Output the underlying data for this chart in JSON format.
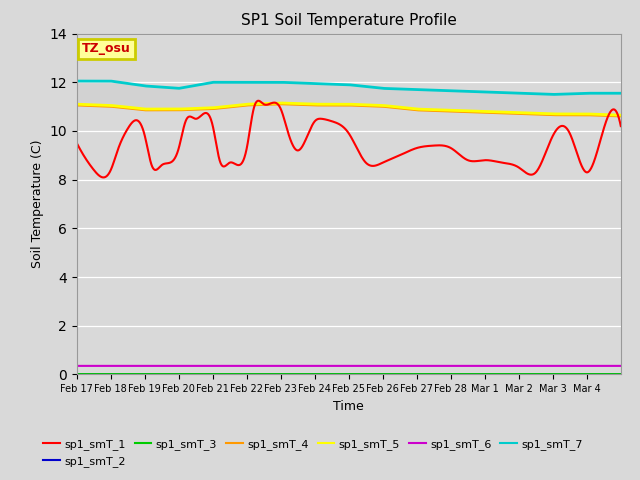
{
  "title": "SP1 Soil Temperature Profile",
  "xlabel": "Time",
  "ylabel": "Soil Temperature (C)",
  "ylim": [
    0,
    14
  ],
  "yticks": [
    0,
    2,
    4,
    6,
    8,
    10,
    12,
    14
  ],
  "background_color": "#d9d9d9",
  "plot_background": "#d9d9d9",
  "tz_label": "TZ_osu",
  "legend_entries": [
    "sp1_smT_1",
    "sp1_smT_2",
    "sp1_smT_3",
    "sp1_smT_4",
    "sp1_smT_5",
    "sp1_smT_6",
    "sp1_smT_7"
  ],
  "line_colors": {
    "sp1_smT_1": "#ff0000",
    "sp1_smT_2": "#0000cc",
    "sp1_smT_3": "#00cc00",
    "sp1_smT_4": "#ff9900",
    "sp1_smT_5": "#ffff00",
    "sp1_smT_6": "#cc00cc",
    "sp1_smT_7": "#00cccc"
  },
  "x_tick_labels": [
    "Feb 17",
    "Feb 18",
    "Feb 19",
    "Feb 20",
    "Feb 21",
    "Feb 22",
    "Feb 23",
    "Feb 24",
    "Feb 25",
    "Feb 26",
    "Feb 27",
    "Feb 28",
    "Mar 1",
    "Mar 2",
    "Mar 3",
    "Mar 4"
  ],
  "red_data": {
    "t": [
      0,
      0.2,
      0.5,
      1.0,
      1.2,
      1.5,
      2.0,
      2.2,
      2.5,
      3.0,
      3.2,
      3.5,
      4.0,
      4.2,
      4.5,
      5.0,
      5.2,
      5.5,
      6.0,
      6.2,
      6.5,
      7.0,
      7.2,
      7.5,
      8.0,
      8.5,
      9.0,
      9.5,
      10.0,
      10.5,
      11.0,
      11.5,
      12.0,
      12.5,
      13.0,
      13.5,
      14.0,
      14.5,
      15.0,
      15.5,
      16.0
    ],
    "v": [
      9.5,
      9.0,
      8.4,
      8.4,
      9.2,
      10.1,
      9.8,
      8.6,
      8.6,
      9.3,
      10.4,
      10.5,
      10.2,
      8.8,
      8.7,
      9.3,
      10.9,
      11.1,
      10.9,
      10.0,
      9.2,
      10.4,
      10.5,
      10.4,
      9.9,
      8.7,
      8.7,
      9.0,
      9.3,
      9.4,
      9.3,
      8.8,
      8.8,
      8.7,
      8.5,
      8.3,
      9.8,
      9.9,
      8.3,
      10.1,
      10.2
    ]
  },
  "yellow_data": {
    "t": [
      0,
      1,
      2,
      3,
      4,
      5,
      6,
      7,
      8,
      9,
      10,
      11,
      12,
      13,
      14,
      15,
      16
    ],
    "v": [
      11.1,
      11.05,
      10.9,
      10.9,
      10.95,
      11.1,
      11.15,
      11.1,
      11.1,
      11.05,
      10.9,
      10.85,
      10.8,
      10.75,
      10.7,
      10.7,
      10.65
    ]
  },
  "cyan_data": {
    "t": [
      0,
      1,
      2,
      3,
      4,
      5,
      6,
      7,
      8,
      9,
      10,
      11,
      12,
      13,
      14,
      15,
      16
    ],
    "v": [
      12.05,
      12.05,
      11.85,
      11.75,
      12.0,
      12.0,
      12.0,
      11.95,
      11.9,
      11.75,
      11.7,
      11.65,
      11.6,
      11.55,
      11.5,
      11.55,
      11.55
    ]
  },
  "purple_val": 0.35,
  "blue_val": 0.02,
  "green_val": 0.02,
  "orange_data": {
    "t": [
      0,
      1,
      2,
      3,
      4,
      5,
      6,
      7,
      8,
      9,
      10,
      11,
      12,
      13,
      14,
      15,
      16
    ],
    "v": [
      11.1,
      11.05,
      10.9,
      10.9,
      10.95,
      11.1,
      11.15,
      11.1,
      11.1,
      11.05,
      10.9,
      10.85,
      10.8,
      10.75,
      10.7,
      10.7,
      10.65
    ]
  }
}
